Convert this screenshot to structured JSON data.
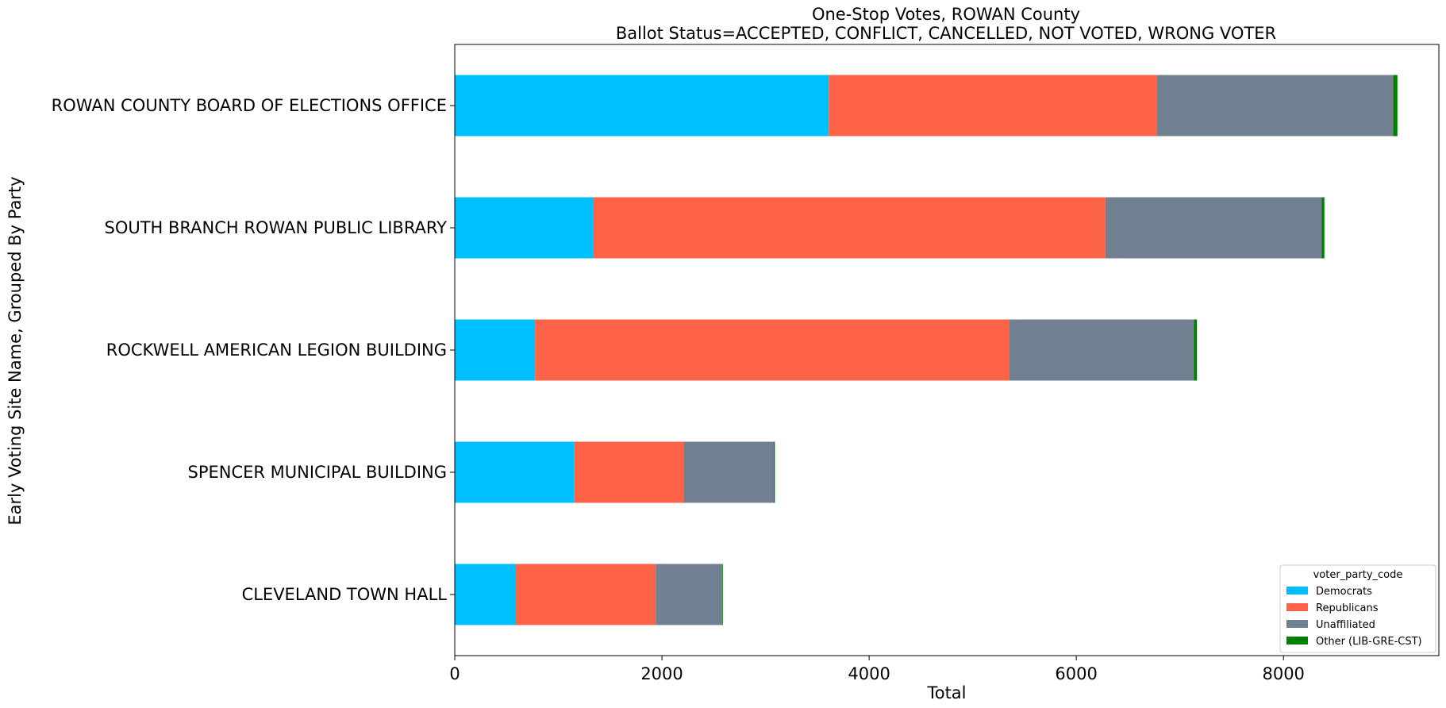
{
  "chart_data": {
    "type": "bar",
    "orientation": "horizontal",
    "stacked": true,
    "title": "One-Stop Votes, ROWAN County",
    "subtitle": "Ballot Status=ACCEPTED, CONFLICT, CANCELLED, NOT VOTED, WRONG VOTER",
    "xlabel": "Total",
    "ylabel": "Early Voting Site Name, Grouped By Party",
    "categories": [
      "ROWAN COUNTY BOARD OF ELECTIONS OFFICE",
      "SOUTH BRANCH ROWAN PUBLIC LIBRARY",
      "ROCKWELL AMERICAN LEGION BUILDING",
      "SPENCER MUNICIPAL BUILDING",
      "CLEVELAND TOWN HALL"
    ],
    "series": [
      {
        "name": "Democrats",
        "color": "#00bfff",
        "values": [
          3610,
          1340,
          775,
          1150,
          590
        ]
      },
      {
        "name": "Republicans",
        "color": "#ff6347",
        "values": [
          3170,
          4940,
          4580,
          1060,
          1350
        ]
      },
      {
        "name": "Unaffiliated",
        "color": "#708090",
        "values": [
          2280,
          2090,
          1780,
          870,
          640
        ]
      },
      {
        "name": "Other (LIB-GRE-CST)",
        "color": "#008000",
        "values": [
          40,
          25,
          30,
          10,
          8
        ]
      }
    ],
    "xlim": [
      0,
      9500
    ],
    "xticks": [
      0,
      2000,
      4000,
      6000,
      8000
    ],
    "grid": false,
    "legend": {
      "title": "voter_party_code",
      "placement": "lower-right"
    }
  }
}
